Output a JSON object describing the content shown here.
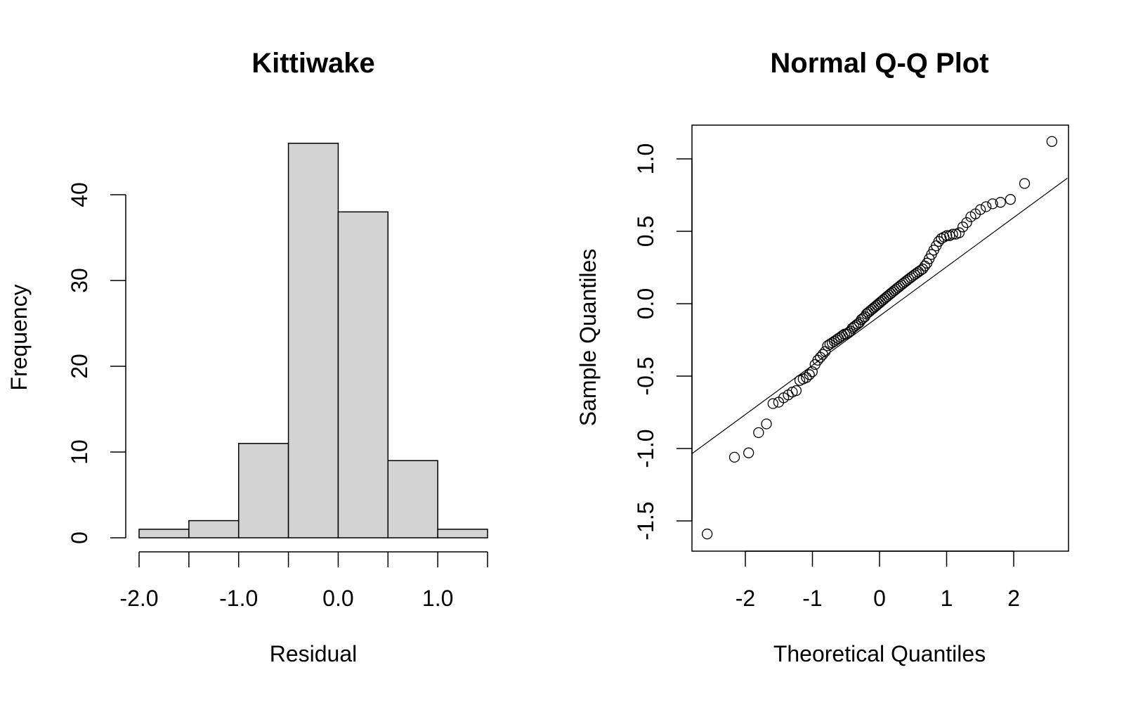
{
  "chart_data": [
    {
      "type": "bar",
      "subtype": "histogram",
      "title": "Kittiwake",
      "xlabel": "Residual",
      "ylabel": "Frequency",
      "bins": [
        {
          "start": -2.0,
          "end": -1.5,
          "count": 1
        },
        {
          "start": -1.5,
          "end": -1.0,
          "count": 2
        },
        {
          "start": -1.0,
          "end": -0.5,
          "count": 11
        },
        {
          "start": -0.5,
          "end": 0.0,
          "count": 46
        },
        {
          "start": 0.0,
          "end": 0.5,
          "count": 38
        },
        {
          "start": 0.5,
          "end": 1.0,
          "count": 9
        },
        {
          "start": 1.0,
          "end": 1.5,
          "count": 1
        }
      ],
      "x_ticks": [
        "-2.0",
        "-1.0",
        "0.0",
        "1.0"
      ],
      "y_ticks": [
        "0",
        "10",
        "20",
        "30",
        "40"
      ],
      "xlim": [
        -2.0,
        1.5
      ],
      "ylim": [
        0,
        46
      ],
      "bar_color": "#d3d3d3",
      "grid": false
    },
    {
      "type": "scatter",
      "title": "Normal Q-Q Plot",
      "xlabel": "Theoretical Quantiles",
      "ylabel": "Sample Quantiles",
      "x_ticks": [
        "-2",
        "-1",
        "0",
        "1",
        "2"
      ],
      "y_ticks": [
        "-1.5",
        "-1.0",
        "-0.5",
        "0.0",
        "0.5",
        "1.0"
      ],
      "xlim": [
        -2.8,
        2.8
      ],
      "ylim": [
        -1.7,
        1.23
      ],
      "reference_line": {
        "intercept": -0.085,
        "slope": 0.34
      },
      "marker": "open-circle",
      "grid": false
    }
  ]
}
